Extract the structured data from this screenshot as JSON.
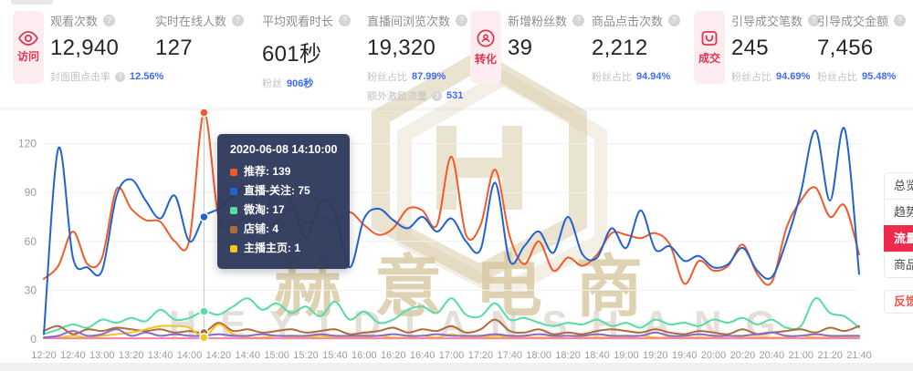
{
  "stats": {
    "badges": [
      {
        "label": "访问",
        "icon": "eye-icon"
      },
      {
        "label": "转化",
        "icon": "convert-icon"
      },
      {
        "label": "成交",
        "icon": "bag-icon"
      }
    ],
    "cards": [
      {
        "label": "观看次数",
        "value": "12,940",
        "sub1_label": "封面图点击率",
        "sub1_value": "12.56%"
      },
      {
        "label": "实时在线人数",
        "value": "127"
      },
      {
        "label": "平均观看时长",
        "value": "601秒",
        "sub1_label": "粉丝",
        "sub1_value": "906秒"
      },
      {
        "label": "直播间浏览次数",
        "value": "19,320",
        "sub1_label": "粉丝占比",
        "sub1_value": "87.99%",
        "sub2_label": "额外激励流量",
        "sub2_value": "531"
      },
      {
        "label": "新增粉丝数",
        "value": "39"
      },
      {
        "label": "商品点击次数",
        "value": "2,212",
        "sub1_label": "粉丝占比",
        "sub1_value": "94.94%"
      },
      {
        "label": "引导成交笔数",
        "value": "245",
        "sub1_label": "粉丝占比",
        "sub1_value": "94.69%"
      },
      {
        "label": "引导成交金额",
        "value": "7,456",
        "sub1_label": "粉丝占比",
        "sub1_value": "95.48%"
      }
    ],
    "accent_red": "#e2354e",
    "accent_blue": "#3f6bf5"
  },
  "tabs": {
    "group": [
      "总览",
      "趋势",
      "流量",
      "商品"
    ],
    "active": "流量",
    "feedback": "反馈",
    "active_bg": "#ee2b4e"
  },
  "watermark": {
    "cn": "赫意电商",
    "en": "HEYIDIANSHANG",
    "color": "#d6c59e"
  },
  "chart_data": {
    "type": "line",
    "title": "",
    "xlabel": "",
    "ylabel": "",
    "ylim": [
      0,
      120
    ],
    "y_ticks": [
      0,
      30,
      60,
      90,
      120
    ],
    "grid": true,
    "legend_position": "none",
    "x_start": "12:20",
    "x_end": "21:40",
    "x_step_minutes": 10,
    "x_tick_labels": [
      "12:20",
      "12:40",
      "13:00",
      "13:20",
      "13:40",
      "14:00",
      "14:20",
      "14:40",
      "15:00",
      "15:20",
      "15:40",
      "16:00",
      "16:20",
      "16:40",
      "17:00",
      "17:20",
      "17:40",
      "18:00",
      "18:20",
      "18:40",
      "19:00",
      "19:20",
      "19:40",
      "20:00",
      "20:20",
      "20:40",
      "21:00",
      "21:20",
      "21:40"
    ],
    "series": [
      {
        "name": "微淘",
        "color": "#55dda4",
        "values": [
          3,
          6,
          9,
          7,
          12,
          10,
          13,
          11,
          18,
          12,
          13,
          17,
          15,
          20,
          25,
          18,
          22,
          16,
          20,
          14,
          23,
          12,
          17,
          10,
          12,
          18,
          20,
          16,
          25,
          15,
          14,
          22,
          12,
          13,
          10,
          8,
          10,
          9,
          12,
          8,
          10,
          7,
          12,
          9,
          10,
          8,
          12,
          10,
          13,
          9,
          12,
          7,
          8,
          25,
          16,
          14,
          7
        ]
      },
      {
        "name": "店铺",
        "color": "#b06a3b",
        "values": [
          5,
          8,
          3,
          6,
          5,
          7,
          6,
          5,
          6,
          4,
          5,
          4,
          10,
          5,
          6,
          4,
          5,
          6,
          4,
          5,
          6,
          3,
          4,
          5,
          7,
          4,
          6,
          5,
          8,
          4,
          6,
          12,
          5,
          4,
          6,
          3,
          4,
          3,
          5,
          6,
          5,
          4,
          6,
          4,
          3,
          5,
          4,
          3,
          6,
          3,
          4,
          5,
          6,
          4,
          7,
          5,
          8
        ]
      },
      {
        "name": "主播主页",
        "color": "#f3c51f",
        "values": [
          1,
          1,
          2,
          1,
          2,
          3,
          4,
          6,
          8,
          8,
          7,
          1,
          9,
          3,
          1,
          1,
          2,
          1,
          1,
          2,
          1,
          1,
          1,
          2,
          1,
          1,
          2,
          1,
          3,
          1,
          1,
          2,
          1,
          1,
          1,
          1,
          2,
          1,
          1,
          1,
          1,
          2,
          1,
          1,
          1,
          1,
          1,
          2,
          1,
          1,
          1,
          1,
          2,
          1,
          1,
          1,
          1
        ]
      },
      {
        "name": "",
        "color": "#f0879f",
        "values": [
          0.5,
          0.5,
          0.5,
          0.5,
          0.5,
          0.5,
          0.5,
          0.5,
          0.5,
          0.5,
          0.5,
          0.5,
          0.5,
          0.5,
          0.5,
          0.5,
          0.5,
          0.5,
          0.5,
          0.5,
          0.5,
          0.5,
          0.5,
          0.5,
          0.5,
          0.5,
          0.5,
          0.5,
          0.5,
          0.5,
          0.5,
          0.5,
          0.5,
          0.5,
          0.5,
          0.5,
          0.5,
          0.5,
          0.5,
          0.5,
          0.5,
          0.5,
          0.5,
          0.5,
          0.5,
          0.5,
          0.5,
          0.5,
          0.5,
          0.5,
          0.5,
          0.5,
          0.5,
          0.5,
          0.5,
          0.5,
          0.5
        ]
      },
      {
        "name": "",
        "color": "#8a68d0",
        "values": [
          1,
          2,
          5,
          2,
          3,
          6,
          2,
          4,
          2,
          3,
          2,
          2,
          3,
          2,
          2,
          3,
          2,
          2,
          2,
          3,
          2,
          2,
          2,
          2,
          3,
          2,
          2,
          3,
          2,
          2,
          2,
          3,
          2,
          2,
          3,
          2,
          2,
          2,
          3,
          2,
          2,
          2,
          4,
          2,
          2,
          3,
          2,
          2,
          2,
          3,
          4,
          2,
          2,
          3,
          2,
          2,
          2
        ]
      },
      {
        "name": "推荐",
        "color": "#f25a28",
        "values": [
          37,
          45,
          66,
          46,
          50,
          92,
          80,
          73,
          72,
          60,
          61,
          139,
          75,
          70,
          75,
          68,
          72,
          80,
          71,
          75,
          72,
          78,
          70,
          64,
          68,
          80,
          79,
          70,
          112,
          64,
          70,
          104,
          63,
          46,
          60,
          42,
          50,
          45,
          52,
          65,
          64,
          62,
          65,
          58,
          34,
          48,
          42,
          45,
          58,
          40,
          35,
          68,
          85,
          93,
          75,
          82,
          52
        ]
      },
      {
        "name": "直播-关注",
        "color": "#2263d1",
        "values": [
          3,
          117,
          50,
          44,
          42,
          88,
          98,
          85,
          74,
          88,
          60,
          75,
          80,
          88,
          93,
          78,
          92,
          85,
          62,
          84,
          78,
          44,
          74,
          80,
          73,
          68,
          75,
          66,
          74,
          60,
          55,
          96,
          48,
          57,
          66,
          53,
          75,
          52,
          50,
          68,
          56,
          79,
          55,
          57,
          48,
          51,
          44,
          46,
          56,
          42,
          38,
          60,
          90,
          128,
          85,
          129,
          40
        ]
      }
    ],
    "tooltip": {
      "date": "2020-06-08 14:10:00",
      "x_index": 11,
      "rows": [
        {
          "label": "推荐",
          "value": "139",
          "color": "#f25a28"
        },
        {
          "label": "直播-关注",
          "value": "75",
          "color": "#2263d1"
        },
        {
          "label": "微淘",
          "value": "17",
          "color": "#55dda4"
        },
        {
          "label": "店铺",
          "value": "4",
          "color": "#b06a3b"
        },
        {
          "label": "主播主页",
          "value": "1",
          "color": "#f3c51f"
        }
      ]
    }
  }
}
